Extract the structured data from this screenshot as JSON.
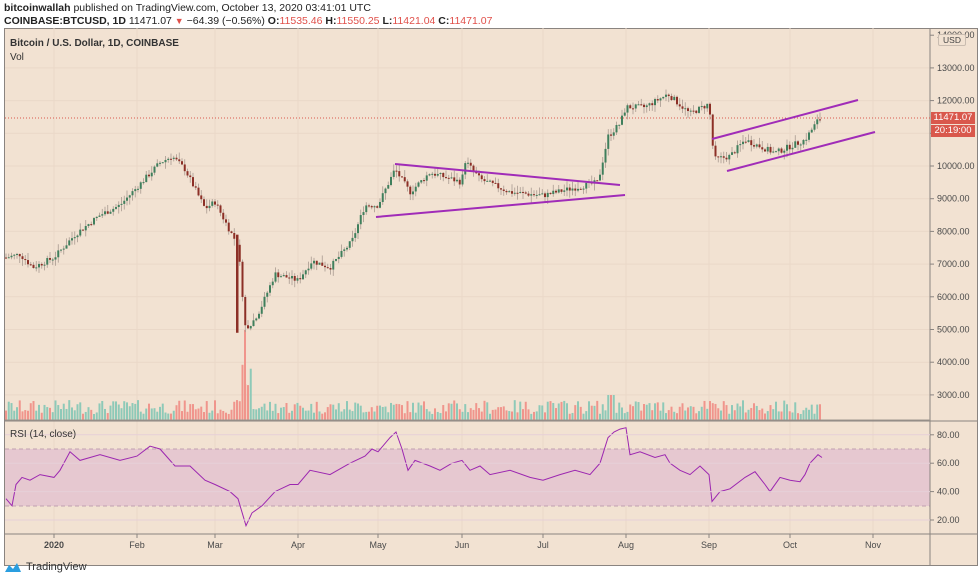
{
  "header": {
    "author": "bitcoinwallah",
    "published_text": "published on TradingView.com, October 13, 2020 03:41:01 UTC",
    "symbol": "COINBASE:BTCUSD, 1D",
    "last": "11471.07",
    "change": "−64.39 (−0.56%)",
    "open_label": "O:",
    "open": "11535.46",
    "high_label": "H:",
    "high": "11550.25",
    "low_label": "L:",
    "low": "11421.04",
    "close_label": "C:",
    "close": "11471.07"
  },
  "legend": {
    "title": "Bitcoin / U.S. Dollar, 1D, COINBASE",
    "volume_label": "Vol"
  },
  "price_axis": {
    "currency": "USD",
    "current_price": "11471.07",
    "countdown": "20:19:00"
  },
  "rsi": {
    "label": "RSI (14, close)"
  },
  "footer": {
    "brand": "TradingView"
  },
  "colors": {
    "background": "#f2e2d2",
    "up_candle": "#3f7f5c",
    "down_candle": "#8c2f26",
    "up_volume": "#8ec9b8",
    "down_volume": "#f0958c",
    "trendline": "#9c27b0",
    "rsi_line": "#9c27b0",
    "rsi_band": "#e6c8d0",
    "price_tag": "#d9584c"
  },
  "chart_data": [
    {
      "type": "candlestick",
      "title": "Bitcoin / U.S. Dollar, 1D, COINBASE",
      "xlabel": "",
      "ylabel": "USD",
      "x_ticks": [
        "2020",
        "Feb",
        "Mar",
        "Apr",
        "May",
        "Jun",
        "Jul",
        "Aug",
        "Sep",
        "Oct",
        "Nov"
      ],
      "y_ticks": [
        3000,
        4000,
        5000,
        6000,
        7000,
        8000,
        9000,
        10000,
        11000,
        12000,
        13000,
        14000
      ],
      "ylim": [
        2300,
        14000
      ],
      "grid": true,
      "approx_close_by_month": [
        {
          "x": "Dec 2019",
          "value": 7200
        },
        {
          "x": "2020 (Jan 1)",
          "value": 7200
        },
        {
          "x": "mid Jan",
          "value": 8800
        },
        {
          "x": "Feb 1",
          "value": 9350
        },
        {
          "x": "mid Feb",
          "value": 10300
        },
        {
          "x": "late Feb",
          "value": 8700
        },
        {
          "x": "Mar 1",
          "value": 8600
        },
        {
          "x": "Mar 12",
          "value": 4900
        },
        {
          "x": "Apr 1",
          "value": 6500
        },
        {
          "x": "mid Apr",
          "value": 7100
        },
        {
          "x": "May 1",
          "value": 8800
        },
        {
          "x": "May 8",
          "value": 9800
        },
        {
          "x": "Jun 1",
          "value": 9500
        },
        {
          "x": "Jun 2",
          "value": 10200
        },
        {
          "x": "Jul 1",
          "value": 9100
        },
        {
          "x": "late Jul",
          "value": 10900
        },
        {
          "x": "Aug 1",
          "value": 11800
        },
        {
          "x": "Aug 17",
          "value": 12200
        },
        {
          "x": "Sep 1",
          "value": 11900
        },
        {
          "x": "Sep 5",
          "value": 10200
        },
        {
          "x": "Oct 1",
          "value": 10600
        },
        {
          "x": "Oct 13",
          "value": 11471.07
        }
      ],
      "annotations": [
        {
          "type": "trendline",
          "label": "triangle upper",
          "from": {
            "x": "May 8",
            "y": 10050
          },
          "to": {
            "x": "Jul 28",
            "y": 9450
          }
        },
        {
          "type": "trendline",
          "label": "triangle lower",
          "from": {
            "x": "May 1",
            "y": 8400
          },
          "to": {
            "x": "Aug 1",
            "y": 9100
          }
        },
        {
          "type": "trendline",
          "label": "channel upper",
          "from": {
            "x": "Sep 1",
            "y": 10800
          },
          "to": {
            "x": "Oct 31",
            "y": 12000
          }
        },
        {
          "type": "trendline",
          "label": "channel lower",
          "from": {
            "x": "Sep 8",
            "y": 9800
          },
          "to": {
            "x": "Nov 30",
            "y": 11000
          }
        },
        {
          "type": "hline",
          "label": "last price",
          "y": 11471.07
        }
      ]
    },
    {
      "type": "bar",
      "title": "Vol",
      "note": "volume bars, largest spike around Mar 12-13",
      "grid": false
    },
    {
      "type": "line",
      "title": "RSI (14, close)",
      "y_ticks": [
        20,
        40,
        60,
        80
      ],
      "ylim": [
        10,
        90
      ],
      "bands": {
        "upper": 70,
        "lower": 30
      },
      "approx_values": [
        {
          "x": "Dec 2019",
          "value": 35
        },
        {
          "x": "late Dec",
          "value": 30
        },
        {
          "x": "2020",
          "value": 50
        },
        {
          "x": "mid Jan",
          "value": 68
        },
        {
          "x": "Feb 1",
          "value": 65
        },
        {
          "x": "Feb 10",
          "value": 72
        },
        {
          "x": "Mar 1",
          "value": 45
        },
        {
          "x": "Mar 12",
          "value": 16
        },
        {
          "x": "Apr 1",
          "value": 50
        },
        {
          "x": "Apr 20",
          "value": 55
        },
        {
          "x": "May 1",
          "value": 68
        },
        {
          "x": "May 7",
          "value": 82
        },
        {
          "x": "May 15",
          "value": 55
        },
        {
          "x": "Jun 1",
          "value": 62
        },
        {
          "x": "Jul 1",
          "value": 50
        },
        {
          "x": "Jul 28",
          "value": 80
        },
        {
          "x": "Aug 1",
          "value": 85
        },
        {
          "x": "Aug 3",
          "value": 65
        },
        {
          "x": "Sep 1",
          "value": 55
        },
        {
          "x": "Sep 5",
          "value": 33
        },
        {
          "x": "Sep 20",
          "value": 47
        },
        {
          "x": "Oct 1",
          "value": 47
        },
        {
          "x": "Oct 10",
          "value": 65
        },
        {
          "x": "Oct 13",
          "value": 64
        }
      ]
    }
  ]
}
